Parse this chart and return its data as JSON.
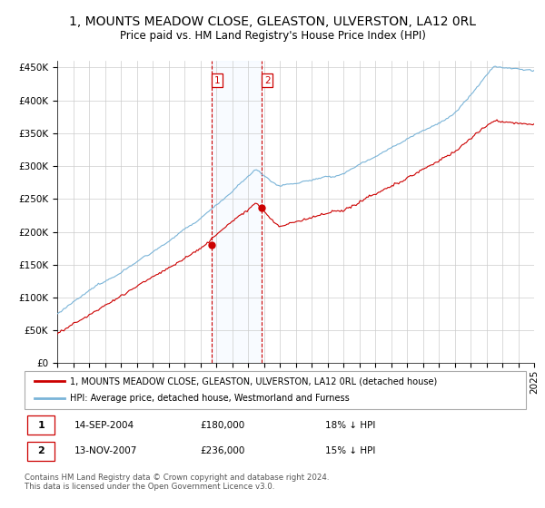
{
  "title": "1, MOUNTS MEADOW CLOSE, GLEASTON, ULVERSTON, LA12 0RL",
  "subtitle": "Price paid vs. HM Land Registry's House Price Index (HPI)",
  "legend_text_property": "1, MOUNTS MEADOW CLOSE, GLEASTON, ULVERSTON, LA12 0RL (detached house)",
  "legend_text_hpi": "HPI: Average price, detached house, Westmorland and Furness",
  "sale1_date": "14-SEP-2004",
  "sale1_price": 180000,
  "sale1_hpi_diff": "18% ↓ HPI",
  "sale2_date": "13-NOV-2007",
  "sale2_price": 236000,
  "sale2_hpi_diff": "15% ↓ HPI",
  "footer": "Contains HM Land Registry data © Crown copyright and database right 2024.\nThis data is licensed under the Open Government Licence v3.0.",
  "ylim": [
    0,
    460000
  ],
  "yticks": [
    0,
    50000,
    100000,
    150000,
    200000,
    250000,
    300000,
    350000,
    400000,
    450000
  ],
  "sale1_year": 2004.7,
  "sale2_year": 2007.87,
  "hpi_color": "#7ab4d8",
  "property_color": "#cc0000",
  "shade_color": "#ddeeff",
  "vline_color": "#cc0000",
  "background_color": "#ffffff",
  "grid_color": "#cccccc",
  "title_fontsize": 10,
  "subtitle_fontsize": 8.5,
  "axis_fontsize": 7.5
}
